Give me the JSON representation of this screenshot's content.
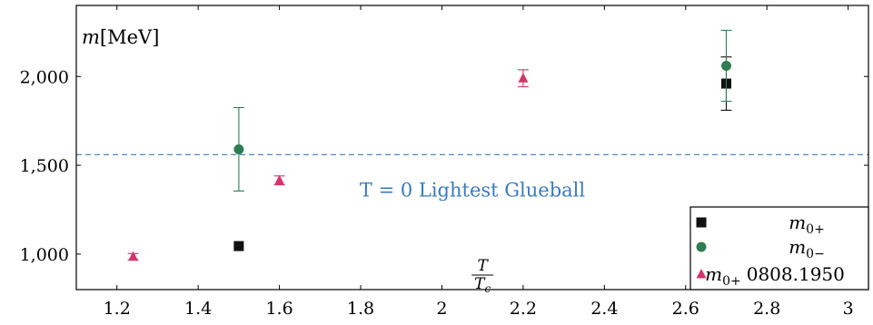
{
  "chart_data": {
    "type": "scatter",
    "title": "",
    "xlabel_num": "T",
    "xlabel_den": "T",
    "xlabel_den_sub": "c",
    "ylabel_var": "m",
    "ylabel_unit": "[MeV]",
    "xlim": [
      1.1,
      3.05
    ],
    "ylim": [
      800,
      2400
    ],
    "x_ticks": [
      1.2,
      1.4,
      1.6,
      1.8,
      2,
      2.2,
      2.4,
      2.6,
      2.8,
      3
    ],
    "x_tick_labels": [
      "1.2",
      "1.4",
      "1.6",
      "1.8",
      "2",
      "2.2",
      "2.4",
      "2.6",
      "2.8",
      "3"
    ],
    "y_ticks": [
      1000,
      1500,
      2000
    ],
    "y_tick_labels": [
      "1,000",
      "1,500",
      "2,000"
    ],
    "grid": false,
    "legend_position": "bottom-right",
    "reference_line": {
      "y": 1560,
      "label": "T = 0 Lightest Glueball",
      "color": "#3a7bbf"
    },
    "series": [
      {
        "name_var": "m",
        "name_sub": "0+",
        "name_suffix": "",
        "marker": "square",
        "color": "#111111",
        "points": [
          {
            "x": 1.5,
            "y": 1045,
            "err": 0
          },
          {
            "x": 2.7,
            "y": 1960,
            "err": 150
          }
        ]
      },
      {
        "name_var": "m",
        "name_sub": "0−",
        "name_suffix": "",
        "marker": "circle",
        "color": "#2e7d52",
        "points": [
          {
            "x": 1.5,
            "y": 1590,
            "err": 235
          },
          {
            "x": 2.7,
            "y": 2060,
            "err": 200
          }
        ]
      },
      {
        "name_var": "m",
        "name_sub": "0+",
        "name_suffix": "0808.1950",
        "marker": "triangle",
        "color": "#d6336c",
        "points": [
          {
            "x": 1.24,
            "y": 985,
            "err": 18
          },
          {
            "x": 1.6,
            "y": 1415,
            "err": 25
          },
          {
            "x": 2.2,
            "y": 1990,
            "err": 48
          }
        ]
      }
    ]
  }
}
